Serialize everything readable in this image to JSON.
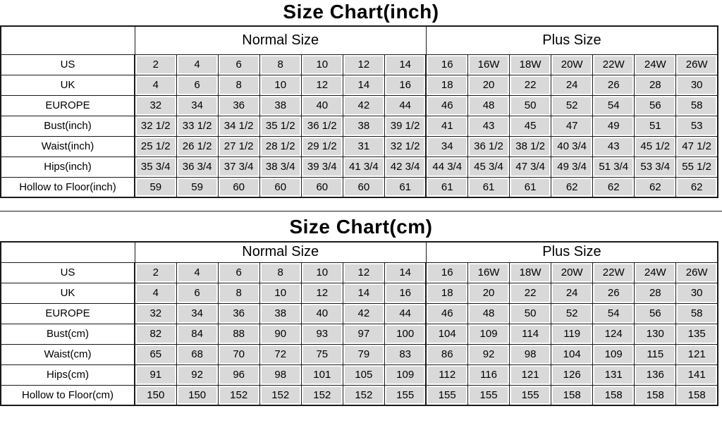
{
  "chart_data": [
    {
      "type": "table",
      "title": "Size Chart(inch)",
      "group_headers": [
        {
          "label": "Normal Size",
          "span": 7
        },
        {
          "label": "Plus Size",
          "span": 7
        }
      ],
      "rows": [
        {
          "label": "US",
          "values": [
            "2",
            "4",
            "6",
            "8",
            "10",
            "12",
            "14",
            "16",
            "16W",
            "18W",
            "20W",
            "22W",
            "24W",
            "26W"
          ]
        },
        {
          "label": "UK",
          "values": [
            "4",
            "6",
            "8",
            "10",
            "12",
            "14",
            "16",
            "18",
            "20",
            "22",
            "24",
            "26",
            "28",
            "30"
          ]
        },
        {
          "label": "EUROPE",
          "values": [
            "32",
            "34",
            "36",
            "38",
            "40",
            "42",
            "44",
            "46",
            "48",
            "50",
            "52",
            "54",
            "56",
            "58"
          ]
        },
        {
          "label": "Bust(inch)",
          "values": [
            "32 1/2",
            "33 1/2",
            "34 1/2",
            "35 1/2",
            "36 1/2",
            "38",
            "39 1/2",
            "41",
            "43",
            "45",
            "47",
            "49",
            "51",
            "53"
          ]
        },
        {
          "label": "Waist(inch)",
          "values": [
            "25 1/2",
            "26 1/2",
            "27 1/2",
            "28 1/2",
            "29 1/2",
            "31",
            "32 1/2",
            "34",
            "36 1/2",
            "38 1/2",
            "40 3/4",
            "43",
            "45 1/2",
            "47 1/2"
          ]
        },
        {
          "label": "Hips(inch)",
          "values": [
            "35 3/4",
            "36 3/4",
            "37 3/4",
            "38 3/4",
            "39 3/4",
            "41 3/4",
            "42 3/4",
            "44 3/4",
            "45 3/4",
            "47 3/4",
            "49 3/4",
            "51 3/4",
            "53 3/4",
            "55 1/2"
          ]
        },
        {
          "label": "Hollow to Floor(inch)",
          "values": [
            "59",
            "59",
            "60",
            "60",
            "60",
            "60",
            "61",
            "61",
            "61",
            "61",
            "62",
            "62",
            "62",
            "62"
          ]
        }
      ]
    },
    {
      "type": "table",
      "title": "Size Chart(cm)",
      "group_headers": [
        {
          "label": "Normal Size",
          "span": 7
        },
        {
          "label": "Plus Size",
          "span": 7
        }
      ],
      "rows": [
        {
          "label": "US",
          "values": [
            "2",
            "4",
            "6",
            "8",
            "10",
            "12",
            "14",
            "16",
            "16W",
            "18W",
            "20W",
            "22W",
            "24W",
            "26W"
          ]
        },
        {
          "label": "UK",
          "values": [
            "4",
            "6",
            "8",
            "10",
            "12",
            "14",
            "16",
            "18",
            "20",
            "22",
            "24",
            "26",
            "28",
            "30"
          ]
        },
        {
          "label": "EUROPE",
          "values": [
            "32",
            "34",
            "36",
            "38",
            "40",
            "42",
            "44",
            "46",
            "48",
            "50",
            "52",
            "54",
            "56",
            "58"
          ]
        },
        {
          "label": "Bust(cm)",
          "values": [
            "82",
            "84",
            "88",
            "90",
            "93",
            "97",
            "100",
            "104",
            "109",
            "114",
            "119",
            "124",
            "130",
            "135"
          ]
        },
        {
          "label": "Waist(cm)",
          "values": [
            "65",
            "68",
            "70",
            "72",
            "75",
            "79",
            "83",
            "86",
            "92",
            "98",
            "104",
            "109",
            "115",
            "121"
          ]
        },
        {
          "label": "Hips(cm)",
          "values": [
            "91",
            "92",
            "96",
            "98",
            "101",
            "105",
            "109",
            "112",
            "116",
            "121",
            "126",
            "131",
            "136",
            "141"
          ]
        },
        {
          "label": "Hollow to Floor(cm)",
          "values": [
            "150",
            "150",
            "152",
            "152",
            "152",
            "152",
            "155",
            "155",
            "155",
            "155",
            "158",
            "158",
            "158",
            "158"
          ]
        }
      ]
    }
  ],
  "colors": {
    "cell_bg": "#d9d9d9",
    "border": "#1a1a1a",
    "text": "#000000"
  }
}
